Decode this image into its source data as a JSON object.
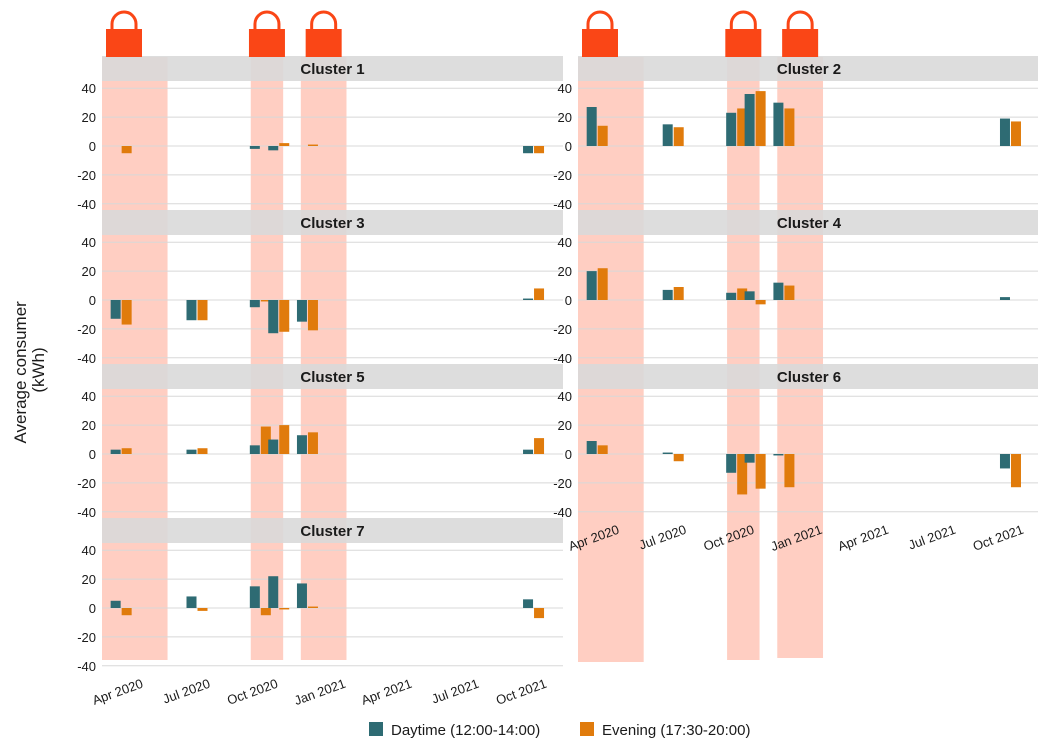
{
  "chart_data": {
    "type": "bar",
    "ylabel_line1": "Average consumer",
    "ylabel_line2": "(kWh)",
    "ylim": [
      -45,
      45
    ],
    "yticks": [
      40,
      20,
      0,
      -20,
      -40
    ],
    "ytick_labels": [
      "40",
      "20",
      "0",
      "-20",
      "-40"
    ],
    "x_axis_type": "date",
    "xlim": [
      "2020-02-23",
      "2021-11-10"
    ],
    "xticks": [
      "2020-04-01",
      "2020-07-01",
      "2020-10-01",
      "2021-01-01",
      "2021-04-01",
      "2021-07-01",
      "2021-10-01"
    ],
    "xtick_labels": [
      "Apr 2020",
      "Jul 2020",
      "Oct 2020",
      "Jan 2021",
      "Apr 2021",
      "Jul 2021",
      "Oct 2021"
    ],
    "periods": [
      "2020-03-20",
      "2020-07-01",
      "2020-09-25",
      "2020-10-20",
      "2020-11-28",
      "2020-12-20",
      "2021-10-01"
    ],
    "series": [
      {
        "name": "Daytime (12:00-14:00)",
        "color": "#2e6b73"
      },
      {
        "name": "Evening (17:30-20:00)",
        "color": "#e07b0c"
      }
    ],
    "reference_color": "#666666",
    "shaded_periods": [
      {
        "start": "2020-02-23",
        "end": "2020-05-22"
      },
      {
        "start": "2020-09-12",
        "end": "2020-10-26"
      },
      {
        "start": "2020-11-19",
        "end": "2021-01-20"
      }
    ],
    "shade_color": "#ff9e85",
    "lock_icon_color": "#fa4616",
    "legend_position": "bottom",
    "panels": [
      {
        "title": "Cluster 1",
        "daytime": [
          0,
          0,
          -2,
          -3,
          0,
          0,
          -5
        ],
        "evening": [
          -5,
          0,
          0,
          2,
          1,
          0,
          -5
        ]
      },
      {
        "title": "Cluster 2",
        "daytime": [
          27,
          15,
          23,
          36,
          30,
          0,
          19
        ],
        "evening": [
          14,
          13,
          26,
          38,
          26,
          0,
          17
        ]
      },
      {
        "title": "Cluster 3",
        "daytime": [
          -13,
          -14,
          -5,
          -23,
          -15,
          0,
          1
        ],
        "evening": [
          -17,
          -14,
          -1,
          -22,
          -21,
          0,
          8
        ]
      },
      {
        "title": "Cluster 4",
        "daytime": [
          20,
          7,
          5,
          6,
          12,
          0,
          2
        ],
        "evening": [
          22,
          9,
          8,
          -3,
          10,
          0,
          0
        ]
      },
      {
        "title": "Cluster 5",
        "daytime": [
          3,
          3,
          6,
          10,
          13,
          0,
          3
        ],
        "evening": [
          4,
          4,
          19,
          20,
          15,
          0,
          11
        ]
      },
      {
        "title": "Cluster 6",
        "daytime": [
          9,
          1,
          -13,
          -6,
          -1,
          0,
          -10
        ],
        "evening": [
          6,
          -5,
          -28,
          -24,
          -23,
          0,
          -23
        ]
      },
      {
        "title": "Cluster 7",
        "daytime": [
          5,
          8,
          15,
          22,
          17,
          0,
          6
        ],
        "evening": [
          -5,
          -2,
          -5,
          -1,
          1,
          0,
          -7
        ]
      }
    ]
  }
}
